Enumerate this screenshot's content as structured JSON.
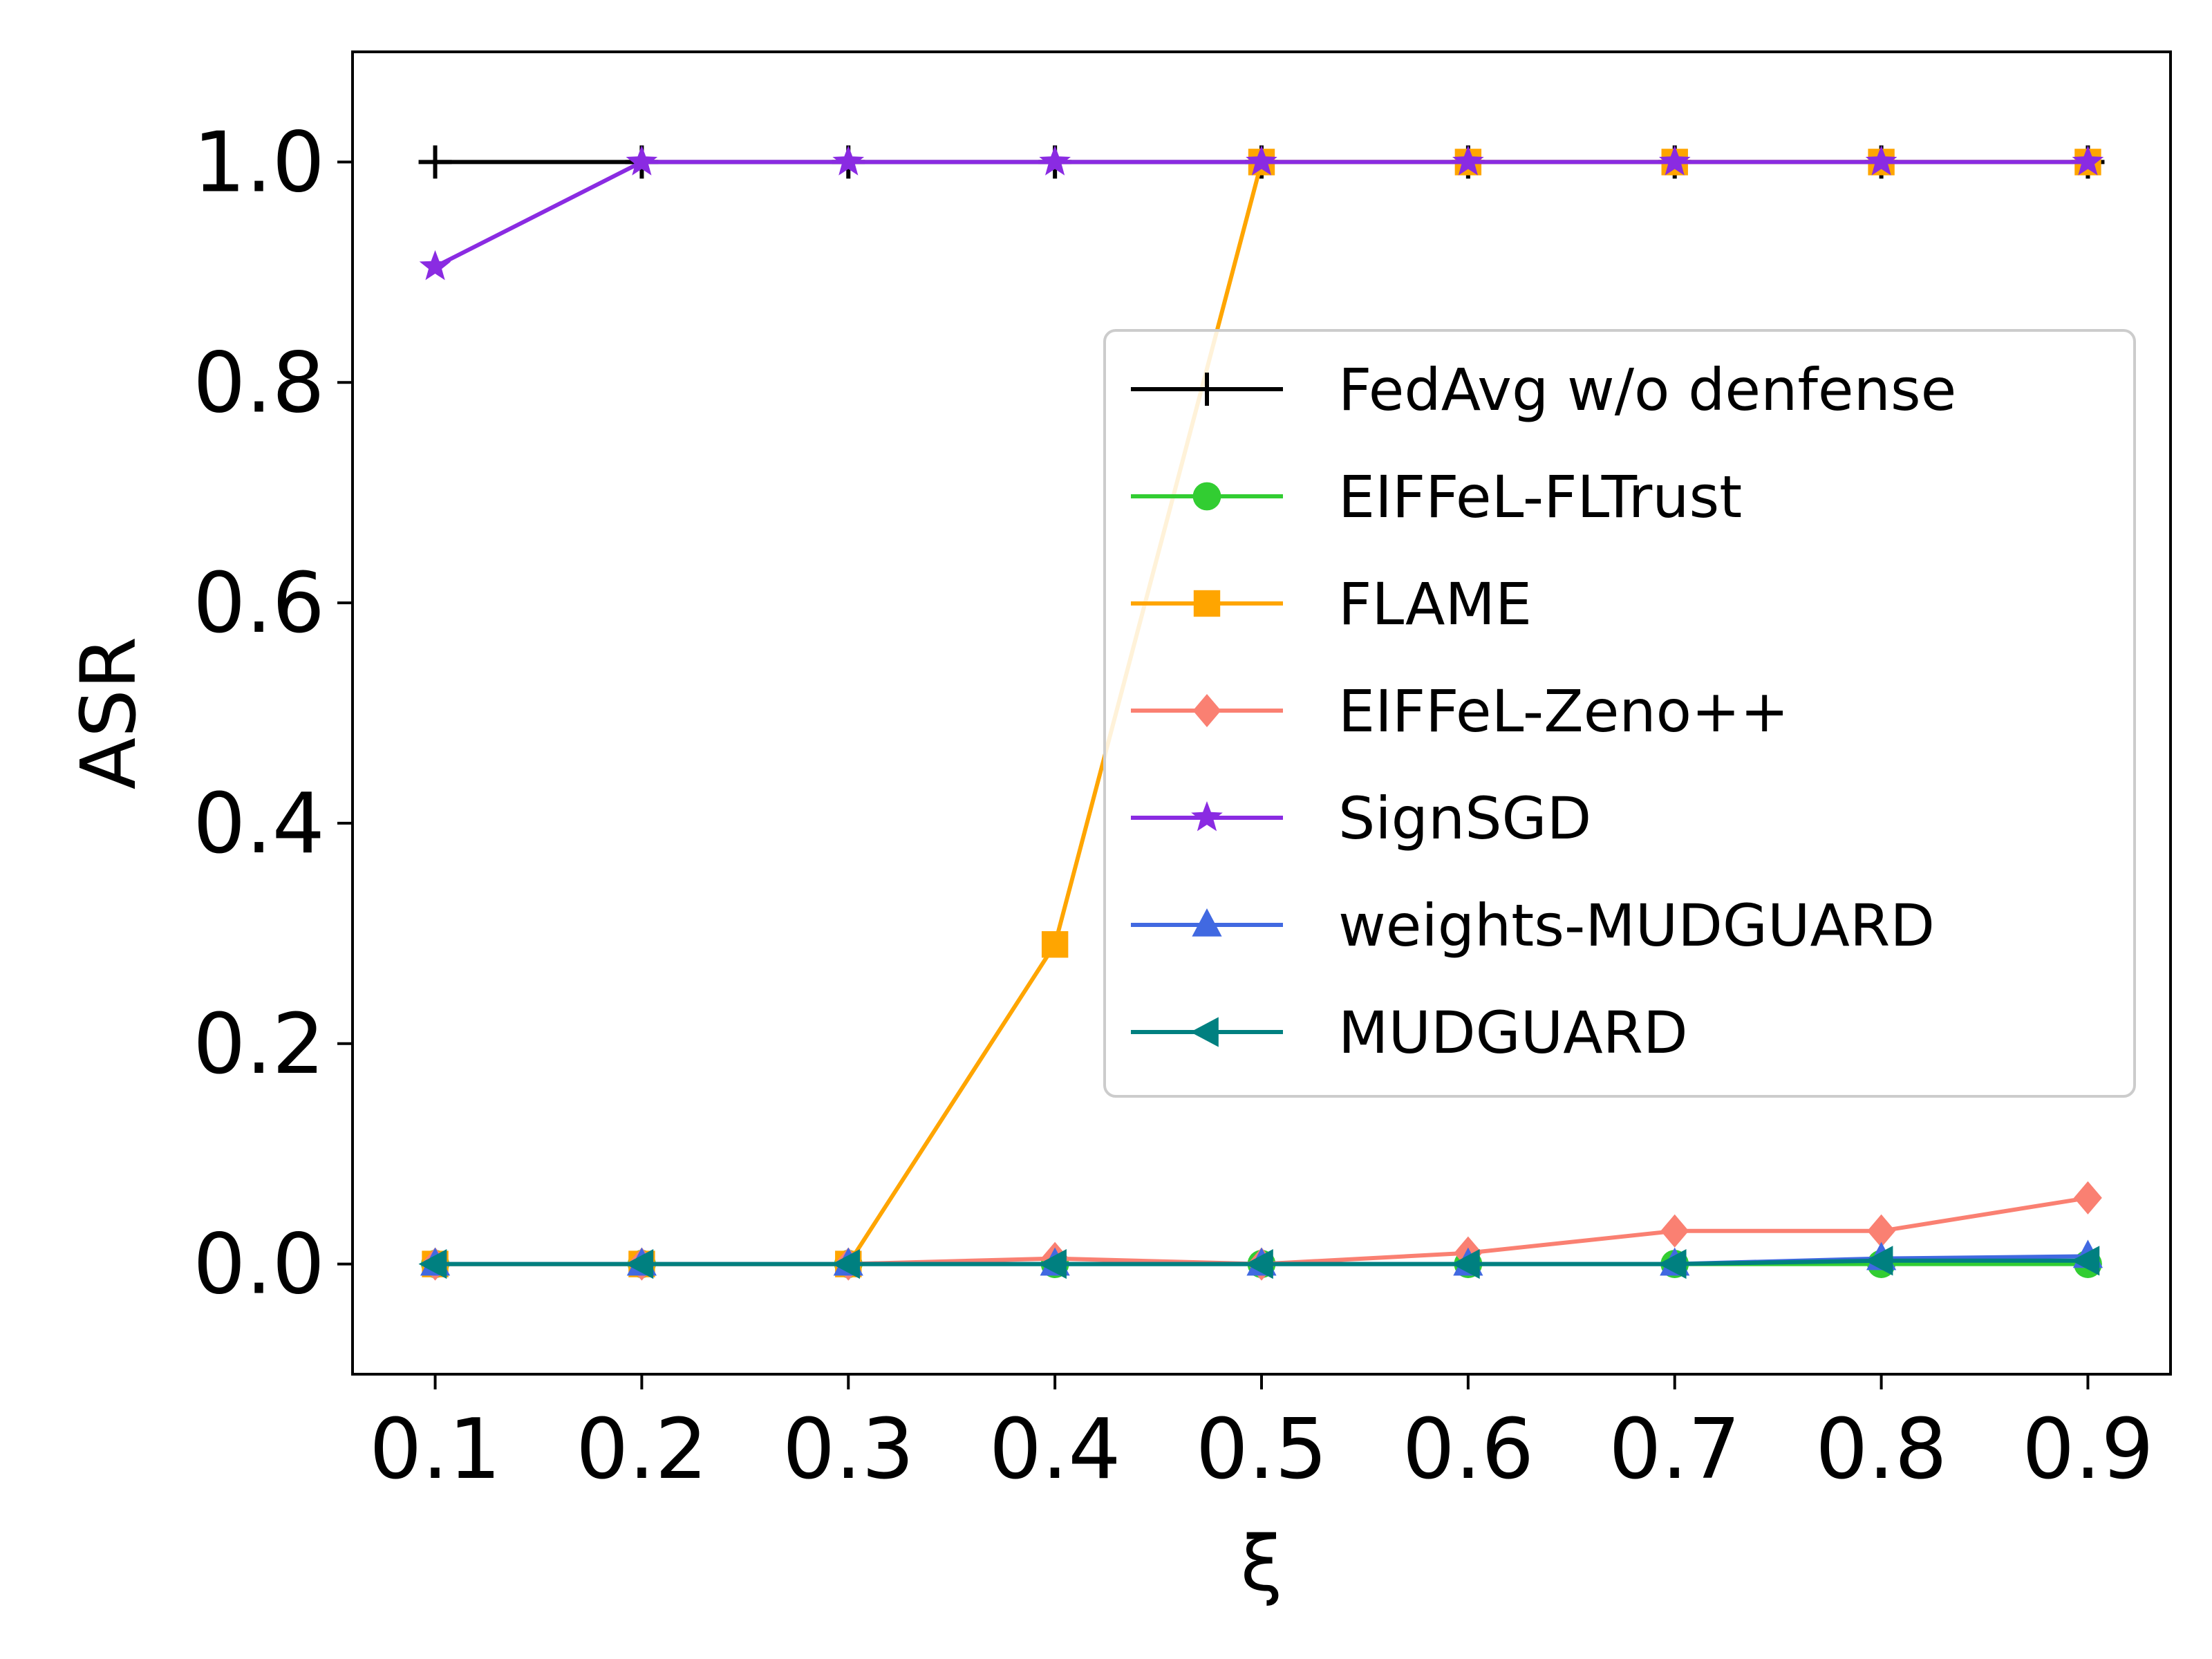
{
  "chart_data": {
    "type": "line",
    "xlabel": "ξ",
    "ylabel": "ASR",
    "xlim": [
      0.06,
      0.94
    ],
    "ylim": [
      -0.1,
      1.1
    ],
    "x_ticks": [
      "0.1",
      "0.2",
      "0.3",
      "0.4",
      "0.5",
      "0.6",
      "0.7",
      "0.8",
      "0.9"
    ],
    "y_ticks": [
      "0.0",
      "0.2",
      "0.4",
      "0.6",
      "0.8",
      "1.0"
    ],
    "grid": false,
    "legend_position": "center-right",
    "x": [
      0.1,
      0.2,
      0.3,
      0.4,
      0.5,
      0.6,
      0.7,
      0.8,
      0.9
    ],
    "series": [
      {
        "name": "FedAvg w/o denfense",
        "color": "#000000",
        "marker": "plus",
        "values": [
          1.0,
          1.0,
          1.0,
          1.0,
          1.0,
          1.0,
          1.0,
          1.0,
          1.0
        ]
      },
      {
        "name": "EIFFeL-FLTrust",
        "color": "#32cd32",
        "marker": "circle",
        "values": [
          0.0,
          0.0,
          0.0,
          0.0,
          0.0,
          0.0,
          0.0,
          0.0,
          0.0
        ]
      },
      {
        "name": "FLAME",
        "color": "#ffa500",
        "marker": "square",
        "values": [
          0.0,
          0.0,
          0.0,
          0.29,
          1.0,
          1.0,
          1.0,
          1.0,
          1.0
        ]
      },
      {
        "name": "EIFFeL-Zeno++",
        "color": "#fa8072",
        "marker": "diamond",
        "values": [
          0.0,
          0.0,
          0.0,
          0.005,
          0.0,
          0.01,
          0.03,
          0.03,
          0.06
        ]
      },
      {
        "name": "SignSGD",
        "color": "#8a2be2",
        "marker": "star",
        "values": [
          0.905,
          1.0,
          1.0,
          1.0,
          1.0,
          1.0,
          1.0,
          1.0,
          1.0
        ]
      },
      {
        "name": "weights-MUDGUARD",
        "color": "#4169e1",
        "marker": "triangle-up",
        "values": [
          0.0,
          0.0,
          0.0,
          0.0,
          0.0,
          0.0,
          0.0,
          0.005,
          0.007
        ]
      },
      {
        "name": "MUDGUARD",
        "color": "#008080",
        "marker": "triangle-left",
        "values": [
          0.0,
          0.0,
          0.0,
          0.0,
          0.0,
          0.0,
          0.0,
          0.003,
          0.003
        ]
      }
    ]
  }
}
